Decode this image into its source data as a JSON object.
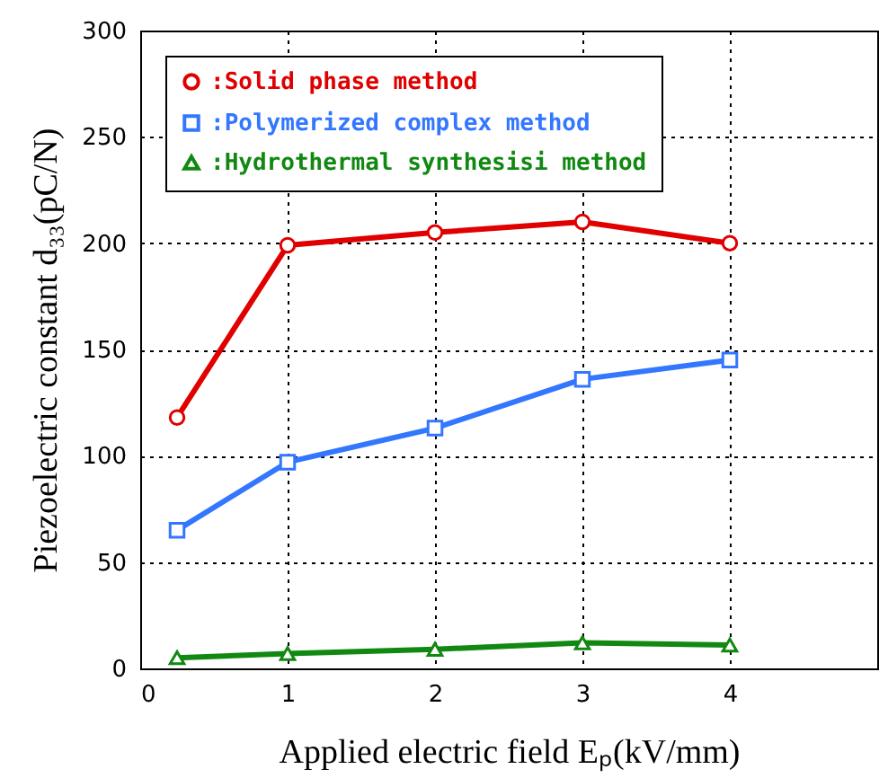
{
  "chart_data": {
    "type": "line",
    "xlabel": "Applied electric field Eₚ(kV/mm)",
    "ylabel": "Piezoelectric constant d₃₃(pC/N)",
    "x": [
      0.25,
      1,
      2,
      3,
      4
    ],
    "series": [
      {
        "name": ":Solid phase method",
        "color": "#e00000",
        "marker": "circle",
        "values": [
          118,
          199,
          205,
          210,
          200
        ]
      },
      {
        "name": ":Polymerized complex method",
        "color": "#3377ff",
        "marker": "square",
        "values": [
          65,
          97,
          113,
          136,
          145
        ]
      },
      {
        "name": ":Hydrothermal synthesisi method",
        "color": "#118811",
        "marker": "triangle",
        "values": [
          5,
          7,
          9,
          12,
          11
        ]
      }
    ],
    "xlim": [
      0,
      5
    ],
    "xticks": [
      0,
      1,
      2,
      3,
      4
    ],
    "ylim": [
      0,
      300
    ],
    "yticks": [
      0,
      50,
      100,
      150,
      200,
      250,
      300
    ],
    "grid": true,
    "legend": "top left",
    "line_style": "solid"
  }
}
